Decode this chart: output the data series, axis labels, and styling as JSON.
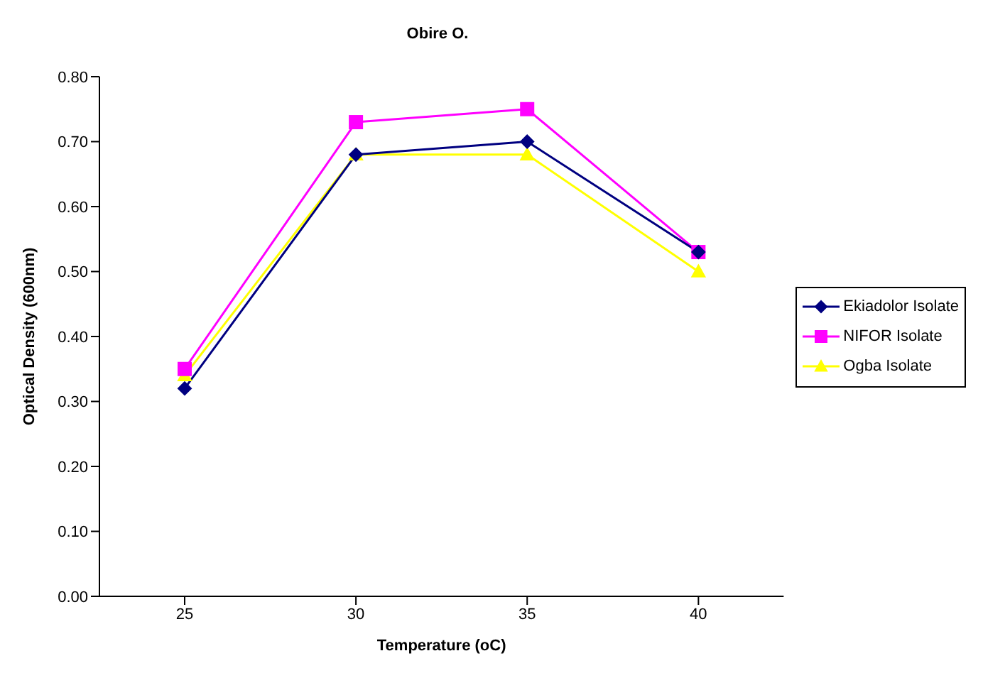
{
  "chart_data": {
    "type": "line",
    "title": "Obire O.",
    "xlabel": "Temperature (oC)",
    "ylabel": "Optical Density (600nm)",
    "categories": [
      "25",
      "30",
      "35",
      "40"
    ],
    "series": [
      {
        "name": "Ekiadolor Isolate",
        "color": "#000080",
        "marker": "diamond",
        "values": [
          0.32,
          0.68,
          0.7,
          0.53
        ]
      },
      {
        "name": "NIFOR Isolate",
        "color": "#ff00ff",
        "marker": "square",
        "values": [
          0.35,
          0.73,
          0.75,
          0.53
        ]
      },
      {
        "name": "Ogba Isolate",
        "color": "#ffff00",
        "marker": "triangle",
        "values": [
          0.34,
          0.68,
          0.68,
          0.5
        ]
      }
    ],
    "ylim": [
      0,
      0.8
    ],
    "yticks": [
      {
        "value": 0,
        "label": "0.00"
      },
      {
        "value": 0.1,
        "label": "0.10"
      },
      {
        "value": 0.2,
        "label": "0.20"
      },
      {
        "value": 0.3,
        "label": "0.30"
      },
      {
        "value": 0.4,
        "label": "0.40"
      },
      {
        "value": 0.5,
        "label": "0.50"
      },
      {
        "value": 0.6,
        "label": "0.60"
      },
      {
        "value": 0.7,
        "label": "0.70"
      },
      {
        "value": 0.8,
        "label": "0.80"
      }
    ],
    "grid": false,
    "legend": "right",
    "line_style": "solid"
  }
}
